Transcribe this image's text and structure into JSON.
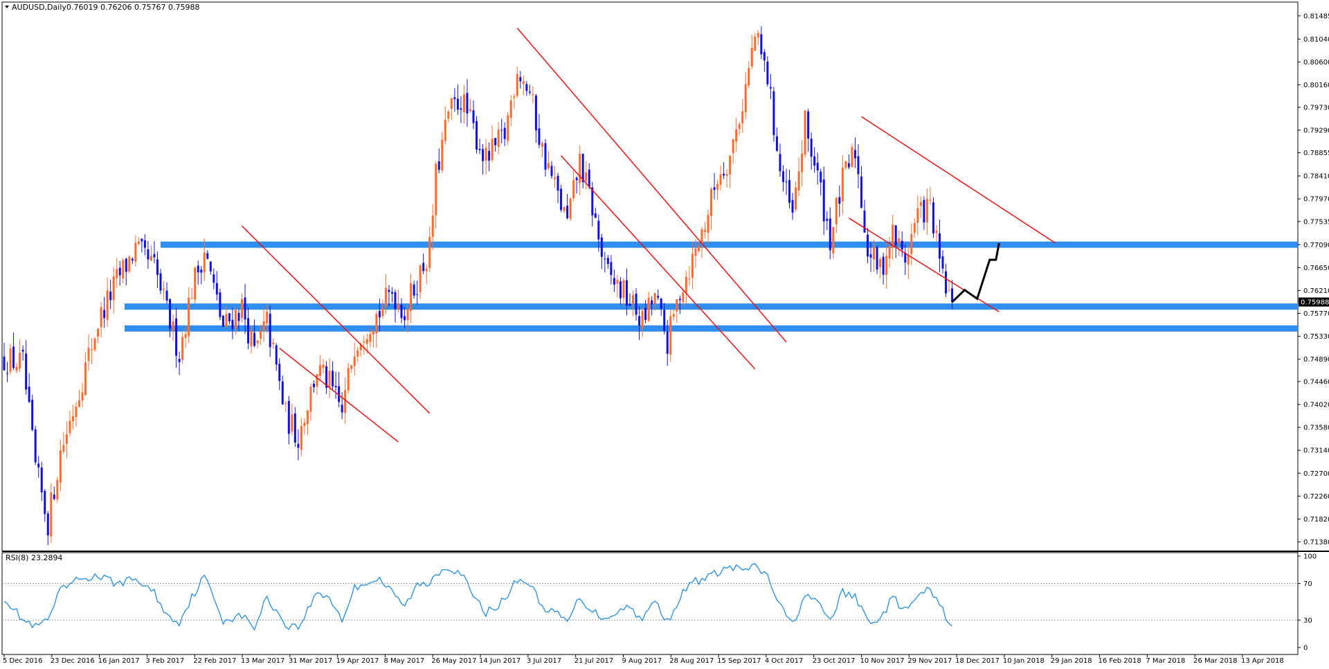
{
  "header": {
    "symbol": "AUDUSD,Daily",
    "ohlc": "0.76019 0.76206 0.75767 0.75988"
  },
  "rsi": {
    "label": "RSI(8) 23.2894",
    "levels": [
      30,
      70
    ],
    "ticks": [
      "100",
      "70",
      "30",
      "0"
    ]
  },
  "colors": {
    "bull": "#ff6a2a",
    "bear": "#1010e0",
    "zone": "#2f8ef0",
    "channel": "#ee1111",
    "projection": "#000000",
    "rsi_line": "#1e8fe8",
    "price_tag_bg": "#000000",
    "price_tag_fg": "#ffffff"
  },
  "chart_data": [
    {
      "type": "candlestick",
      "title": "AUDUSD,Daily",
      "y_ticks": [
        "0.81485",
        "0.81040",
        "0.80600",
        "0.80160",
        "0.79730",
        "0.79290",
        "0.78855",
        "0.78410",
        "0.77970",
        "0.77535",
        "0.77090",
        "0.76650",
        "0.76210",
        "0.75770",
        "0.75330",
        "0.74890",
        "0.74460",
        "0.74020",
        "0.73580",
        "0.73140",
        "0.72700",
        "0.72260",
        "0.71820",
        "0.71380"
      ],
      "ylim": [
        0.712,
        0.8175
      ],
      "current_price": "0.75988",
      "x_ticks": [
        "5 Dec 2016",
        "23 Dec 2016",
        "16 Jan 2017",
        "3 Feb 2017",
        "22 Feb 2017",
        "13 Mar 2017",
        "31 Mar 2017",
        "19 Apr 2017",
        "8 May 2017",
        "26 May 2017",
        "14 Jun 2017",
        "3 Jul 2017",
        "21 Jul 2017",
        "9 Aug 2017",
        "28 Aug 2017",
        "15 Sep 2017",
        "4 Oct 2017",
        "23 Oct 2017",
        "10 Nov 2017",
        "29 Nov 2017",
        "18 Dec 2017",
        "10 Jan 2018",
        "29 Jan 2018",
        "16 Feb 2018",
        "7 Mar 2018",
        "26 Mar 2018",
        "13 Apr 2018"
      ],
      "close_path": [
        [
          0,
          0.749
        ],
        [
          6,
          0.748
        ],
        [
          10,
          0.728
        ],
        [
          14,
          0.7175
        ],
        [
          18,
          0.731
        ],
        [
          24,
          0.743
        ],
        [
          30,
          0.756
        ],
        [
          36,
          0.764
        ],
        [
          42,
          0.77
        ],
        [
          48,
          0.7665
        ],
        [
          52,
          0.758
        ],
        [
          56,
          0.75
        ],
        [
          60,
          0.7625
        ],
        [
          64,
          0.77
        ],
        [
          70,
          0.755
        ],
        [
          76,
          0.759
        ],
        [
          80,
          0.75
        ],
        [
          84,
          0.756
        ],
        [
          90,
          0.738
        ],
        [
          94,
          0.734
        ],
        [
          100,
          0.747
        ],
        [
          104,
          0.744
        ],
        [
          108,
          0.7385
        ],
        [
          112,
          0.752
        ],
        [
          116,
          0.7555
        ],
        [
          120,
          0.758
        ],
        [
          124,
          0.762
        ],
        [
          128,
          0.758
        ],
        [
          132,
          0.764
        ],
        [
          136,
          0.77
        ],
        [
          138,
          0.784
        ],
        [
          142,
          0.796
        ],
        [
          146,
          0.799
        ],
        [
          150,
          0.793
        ],
        [
          154,
          0.787
        ],
        [
          160,
          0.792
        ],
        [
          164,
          0.805
        ],
        [
          168,
          0.8
        ],
        [
          172,
          0.789
        ],
        [
          176,
          0.782
        ],
        [
          180,
          0.775
        ],
        [
          184,
          0.787
        ],
        [
          188,
          0.778
        ],
        [
          192,
          0.766
        ],
        [
          196,
          0.763
        ],
        [
          200,
          0.76
        ],
        [
          204,
          0.756
        ],
        [
          208,
          0.761
        ],
        [
          212,
          0.752
        ],
        [
          216,
          0.762
        ],
        [
          220,
          0.768
        ],
        [
          224,
          0.775
        ],
        [
          228,
          0.784
        ],
        [
          232,
          0.788
        ],
        [
          236,
          0.798
        ],
        [
          240,
          0.811
        ],
        [
          244,
          0.803
        ],
        [
          248,
          0.785
        ],
        [
          252,
          0.776
        ],
        [
          256,
          0.794
        ],
        [
          260,
          0.784
        ],
        [
          264,
          0.772
        ],
        [
          268,
          0.783
        ],
        [
          272,
          0.789
        ],
        [
          276,
          0.77
        ],
        [
          280,
          0.766
        ],
        [
          284,
          0.773
        ],
        [
          288,
          0.768
        ],
        [
          292,
          0.777
        ],
        [
          296,
          0.778
        ],
        [
          300,
          0.764
        ],
        [
          303,
          0.75988
        ]
      ],
      "horizontal_zones": [
        0.7709,
        0.759,
        0.7548
      ],
      "channels": [
        {
          "p1": [
            76,
            0.7745
          ],
          "p2": [
            136,
            0.7385
          ],
          "q1": [
            88,
            0.751
          ],
          "q2": [
            126,
            0.733
          ]
        },
        {
          "p1": [
            164,
            0.8125
          ],
          "p2": [
            250,
            0.7522
          ],
          "q1": [
            178,
            0.788
          ],
          "q2": [
            240,
            0.747
          ]
        },
        {
          "p1": [
            274,
            0.7955
          ],
          "p2": [
            336,
            0.7712
          ],
          "q1": [
            270,
            0.776
          ],
          "q2": [
            318,
            0.758
          ]
        }
      ],
      "projection": [
        [
          303,
          0.75988
        ],
        [
          307,
          0.7622
        ],
        [
          311,
          0.7605
        ],
        [
          315,
          0.768
        ],
        [
          317,
          0.768
        ],
        [
          318,
          0.7712
        ]
      ]
    },
    {
      "type": "line",
      "title": "RSI(8) 23.2894",
      "ylim": [
        0,
        100
      ],
      "hlines": [
        30,
        70
      ],
      "points": [
        [
          0,
          55
        ],
        [
          6,
          30
        ],
        [
          10,
          22
        ],
        [
          14,
          30
        ],
        [
          18,
          62
        ],
        [
          24,
          75
        ],
        [
          30,
          78
        ],
        [
          36,
          70
        ],
        [
          42,
          75
        ],
        [
          48,
          60
        ],
        [
          52,
          35
        ],
        [
          56,
          28
        ],
        [
          60,
          55
        ],
        [
          64,
          78
        ],
        [
          70,
          30
        ],
        [
          76,
          35
        ],
        [
          80,
          22
        ],
        [
          84,
          55
        ],
        [
          90,
          25
        ],
        [
          94,
          22
        ],
        [
          100,
          60
        ],
        [
          104,
          55
        ],
        [
          108,
          30
        ],
        [
          112,
          65
        ],
        [
          116,
          72
        ],
        [
          120,
          75
        ],
        [
          124,
          60
        ],
        [
          128,
          45
        ],
        [
          132,
          68
        ],
        [
          136,
          70
        ],
        [
          138,
          82
        ],
        [
          142,
          88
        ],
        [
          146,
          82
        ],
        [
          150,
          55
        ],
        [
          154,
          38
        ],
        [
          160,
          52
        ],
        [
          164,
          75
        ],
        [
          168,
          70
        ],
        [
          172,
          45
        ],
        [
          176,
          38
        ],
        [
          180,
          28
        ],
        [
          184,
          55
        ],
        [
          188,
          40
        ],
        [
          192,
          32
        ],
        [
          196,
          40
        ],
        [
          200,
          45
        ],
        [
          204,
          30
        ],
        [
          208,
          52
        ],
        [
          212,
          28
        ],
        [
          216,
          55
        ],
        [
          220,
          72
        ],
        [
          224,
          75
        ],
        [
          228,
          82
        ],
        [
          232,
          88
        ],
        [
          236,
          85
        ],
        [
          240,
          88
        ],
        [
          244,
          78
        ],
        [
          248,
          45
        ],
        [
          252,
          25
        ],
        [
          256,
          58
        ],
        [
          260,
          48
        ],
        [
          264,
          30
        ],
        [
          268,
          60
        ],
        [
          272,
          55
        ],
        [
          276,
          30
        ],
        [
          280,
          30
        ],
        [
          284,
          55
        ],
        [
          288,
          40
        ],
        [
          292,
          55
        ],
        [
          296,
          64
        ],
        [
          300,
          40
        ],
        [
          303,
          23.29
        ]
      ]
    }
  ]
}
